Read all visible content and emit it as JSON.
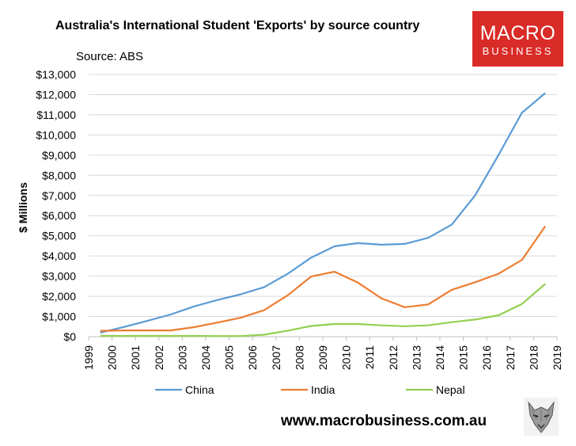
{
  "page": {
    "title": "Australia's International Student 'Exports' by source country",
    "source": "Source: ABS",
    "website": "www.macrobusiness.com.au"
  },
  "logo": {
    "line1": "MACRO",
    "line2": "BUSINESS",
    "color": "#d92b27"
  },
  "chart_data": {
    "type": "line",
    "title": "Australia's International Student 'Exports' by source country",
    "ylabel": "$ Millions",
    "xlabel": "",
    "ylim": [
      0,
      13000
    ],
    "y_ticks": [
      "$0",
      "$1,000",
      "$2,000",
      "$3,000",
      "$4,000",
      "$5,000",
      "$6,000",
      "$7,000",
      "$8,000",
      "$9,000",
      "$10,000",
      "$11,000",
      "$12,000",
      "$13,000"
    ],
    "y_tick_values": [
      0,
      1000,
      2000,
      3000,
      4000,
      5000,
      6000,
      7000,
      8000,
      9000,
      10000,
      11000,
      12000,
      13000
    ],
    "x_ticks": [
      "1999",
      "2000",
      "2001",
      "2002",
      "2003",
      "2004",
      "2005",
      "2006",
      "2007",
      "2008",
      "2009",
      "2010",
      "2011",
      "2012",
      "2013",
      "2014",
      "2015",
      "2016",
      "2017",
      "2018",
      "2019"
    ],
    "x": [
      1999.5,
      2000.5,
      2001.5,
      2002.5,
      2003.5,
      2004.5,
      2005.5,
      2006.5,
      2007.5,
      2008.5,
      2009.5,
      2010.5,
      2011.5,
      2012.5,
      2013.5,
      2014.5,
      2015.5,
      2016.5,
      2017.5,
      2018.5
    ],
    "grid": "horizontal",
    "legend": "bottom",
    "series": [
      {
        "name": "China",
        "color": "#5b9bd5",
        "values": [
          200,
          480,
          780,
          1100,
          1500,
          1820,
          2100,
          2460,
          3120,
          3920,
          4480,
          4640,
          4560,
          4600,
          4900,
          5550,
          7000,
          9000,
          11100,
          12080
        ]
      },
      {
        "name": "India",
        "color": "#ed7d31",
        "values": [
          290,
          310,
          310,
          310,
          470,
          700,
          940,
          1320,
          2050,
          2980,
          3220,
          2680,
          1900,
          1460,
          1600,
          2320,
          2700,
          3120,
          3800,
          5480
        ]
      },
      {
        "name": "Nepal",
        "color": "#92d050",
        "values": [
          40,
          40,
          40,
          40,
          40,
          30,
          30,
          100,
          300,
          530,
          630,
          630,
          560,
          520,
          560,
          720,
          850,
          1060,
          1620,
          2620
        ]
      }
    ]
  }
}
